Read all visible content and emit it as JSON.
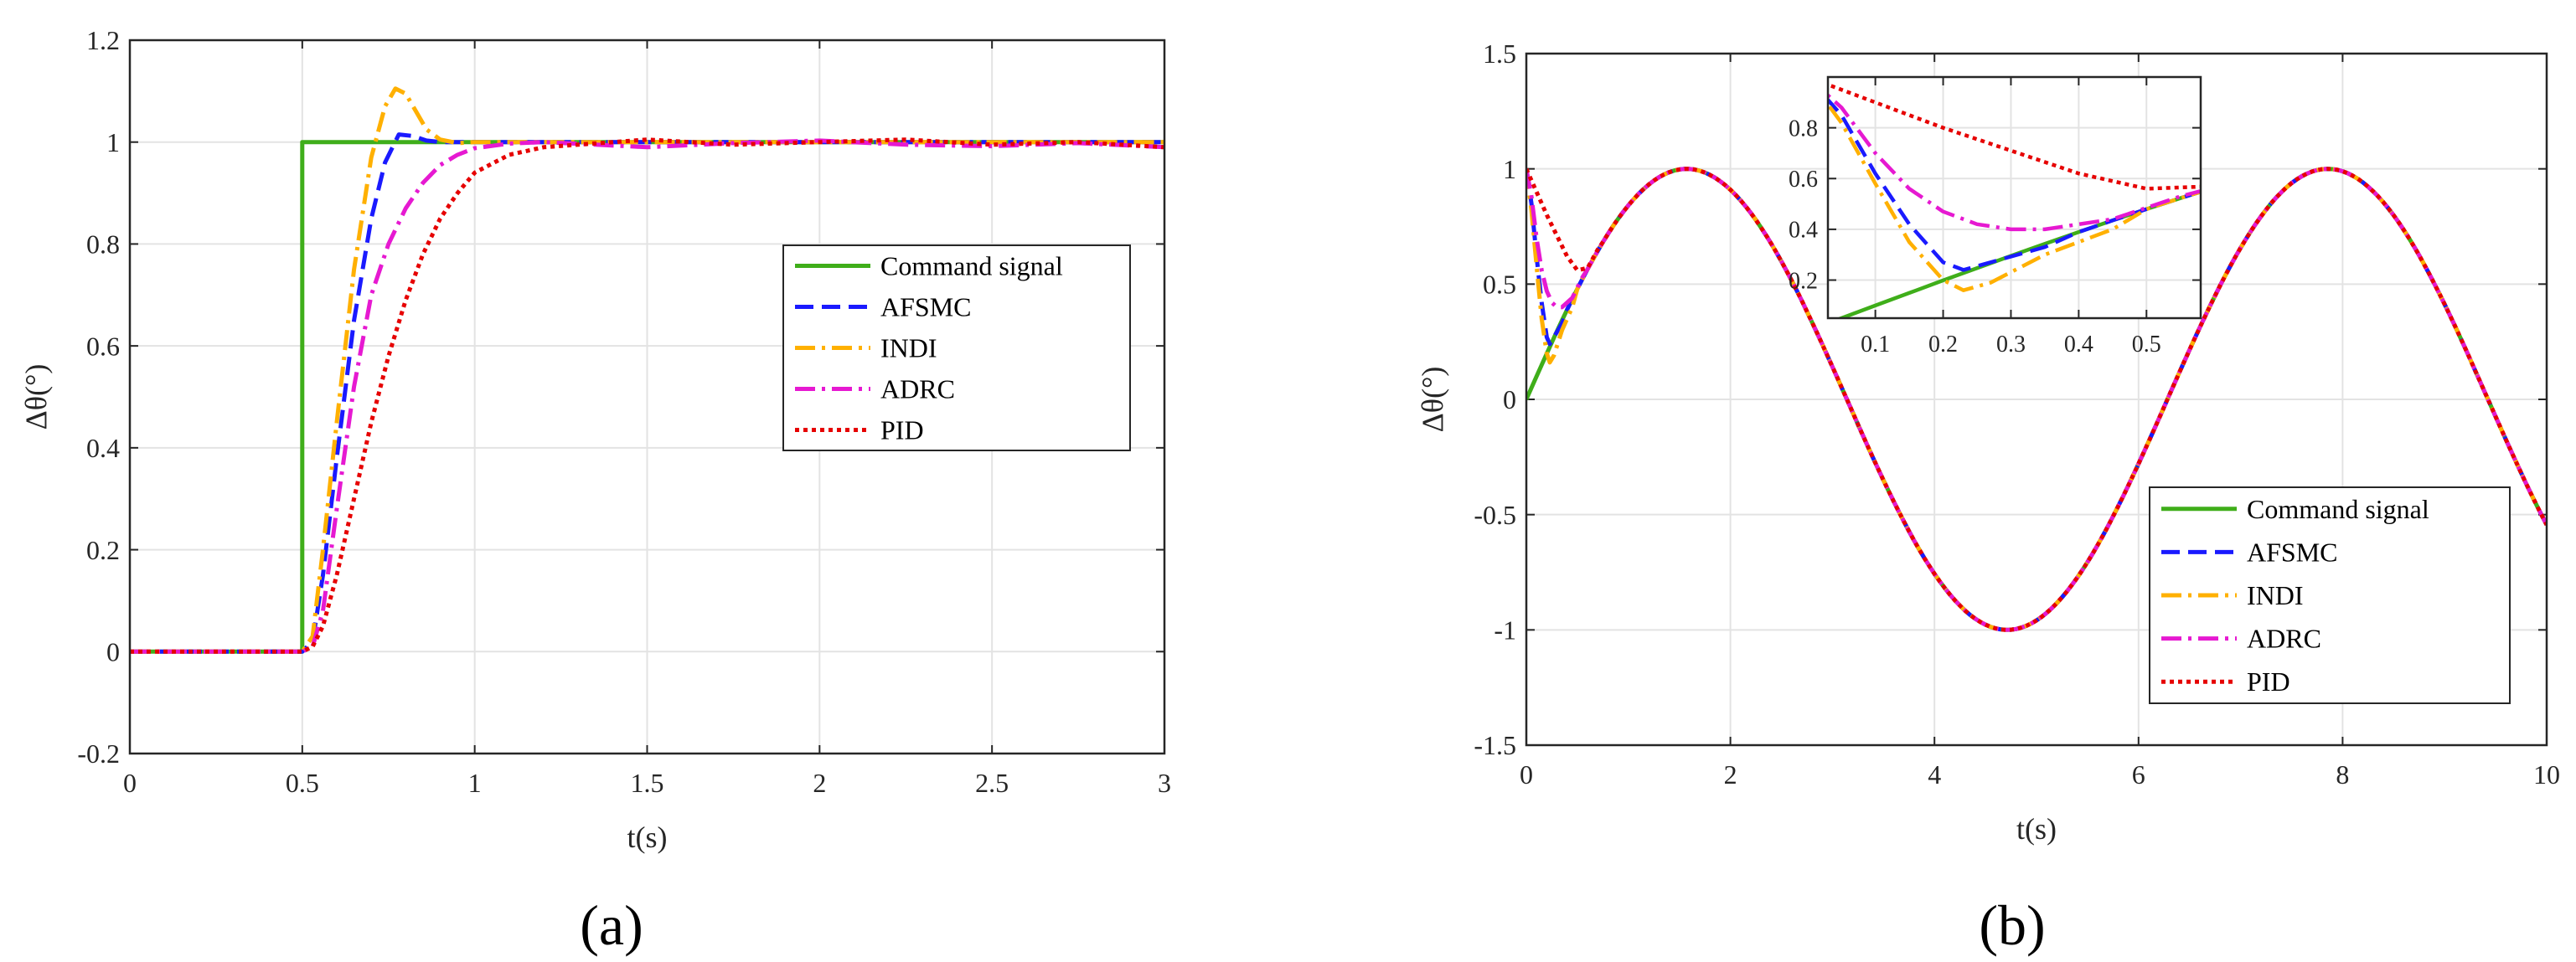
{
  "figure_labels": {
    "a": "(a)",
    "b": "(b)"
  },
  "chart_data": [
    {
      "id": "a",
      "type": "line",
      "title": "",
      "xlabel": "t(s)",
      "ylabel": "Δθ(°)",
      "xlim": [
        0,
        3
      ],
      "ylim": [
        -0.2,
        1.2
      ],
      "xticks": [
        0,
        0.5,
        1,
        1.5,
        2,
        2.5,
        3
      ],
      "xtick_labels": [
        "0",
        "0.5",
        "1",
        "1.5",
        "2",
        "2.5",
        "3"
      ],
      "yticks": [
        -0.2,
        0,
        0.2,
        0.4,
        0.6,
        0.8,
        1,
        1.2
      ],
      "ytick_labels": [
        "-0.2",
        "0",
        "0.2",
        "0.4",
        "0.6",
        "0.8",
        "1",
        "1.2"
      ],
      "grid": true,
      "legend_position": "center-right",
      "series": [
        {
          "name": "Command signal",
          "color": "#3fae1a",
          "style": "solid",
          "x": [
            0,
            0.5,
            0.5,
            3
          ],
          "y": [
            0,
            0,
            1,
            1
          ]
        },
        {
          "name": "AFSMC",
          "color": "#1a1aff",
          "style": "dash",
          "x": [
            0,
            0.5,
            0.53,
            0.56,
            0.6,
            0.65,
            0.7,
            0.74,
            0.78,
            0.82,
            0.86,
            0.9,
            1.0,
            1.5,
            2.0,
            2.5,
            3.0
          ],
          "y": [
            0,
            0,
            0.02,
            0.15,
            0.38,
            0.65,
            0.85,
            0.96,
            1.015,
            1.012,
            1.003,
            1.0,
            1.0,
            1.0,
            1.0,
            1.0,
            1.0
          ]
        },
        {
          "name": "INDI",
          "color": "#ffb000",
          "style": "dashdot",
          "x": [
            0,
            0.5,
            0.53,
            0.56,
            0.6,
            0.65,
            0.7,
            0.74,
            0.77,
            0.8,
            0.83,
            0.86,
            0.9,
            0.95,
            1.0,
            1.5,
            2.0,
            2.5,
            3.0
          ],
          "y": [
            0,
            0,
            0.03,
            0.2,
            0.45,
            0.75,
            0.97,
            1.07,
            1.105,
            1.095,
            1.06,
            1.025,
            1.005,
            0.998,
            1.0,
            1.0,
            1.0,
            1.0,
            1.0
          ]
        },
        {
          "name": "ADRC",
          "color": "#e619d1",
          "style": "dashdot",
          "x": [
            0,
            0.5,
            0.53,
            0.56,
            0.6,
            0.65,
            0.7,
            0.75,
            0.8,
            0.85,
            0.9,
            0.95,
            1.0,
            1.1,
            1.2,
            1.5,
            1.75,
            2.0,
            2.25,
            2.5,
            2.75,
            3.0
          ],
          "y": [
            0,
            0,
            0.01,
            0.08,
            0.28,
            0.52,
            0.7,
            0.8,
            0.87,
            0.92,
            0.955,
            0.975,
            0.988,
            0.997,
            1.0,
            0.99,
            0.998,
            1.003,
            0.995,
            0.992,
            0.998,
            0.99
          ]
        },
        {
          "name": "PID",
          "color": "#e60000",
          "style": "dot",
          "x": [
            0,
            0.5,
            0.53,
            0.56,
            0.6,
            0.65,
            0.7,
            0.75,
            0.8,
            0.85,
            0.9,
            0.95,
            1.0,
            1.1,
            1.2,
            1.3,
            1.5,
            1.75,
            2.0,
            2.25,
            2.5,
            2.75,
            3.0
          ],
          "y": [
            0,
            0,
            0.01,
            0.05,
            0.15,
            0.3,
            0.45,
            0.58,
            0.69,
            0.78,
            0.85,
            0.9,
            0.94,
            0.975,
            0.99,
            0.995,
            1.005,
            0.995,
            1.0,
            1.005,
            0.995,
            1.0,
            0.99
          ]
        }
      ]
    },
    {
      "id": "b",
      "type": "line",
      "title": "",
      "xlabel": "t(s)",
      "ylabel": "Δθ(°)",
      "xlim": [
        0,
        10
      ],
      "ylim": [
        -1.5,
        1.5
      ],
      "xticks": [
        0,
        2,
        4,
        6,
        8,
        10
      ],
      "xtick_labels": [
        "0",
        "2",
        "4",
        "6",
        "8",
        "10"
      ],
      "yticks": [
        -1.5,
        -1,
        -0.5,
        0,
        0.5,
        1,
        1.5
      ],
      "ytick_labels": [
        "-1.5",
        "-1",
        "-0.5",
        "0",
        "0.5",
        "1",
        "1.5"
      ],
      "grid": true,
      "legend_position": "bottom-right",
      "reference": "sin(t)",
      "series": [
        {
          "name": "Command signal",
          "color": "#3fae1a",
          "style": "solid",
          "initial": [
            [
              0,
              0
            ]
          ]
        },
        {
          "name": "AFSMC",
          "color": "#1a1aff",
          "style": "dash",
          "initial": [
            [
              0,
              1.0
            ],
            [
              0.05,
              0.85
            ],
            [
              0.1,
              0.62
            ],
            [
              0.15,
              0.42
            ],
            [
              0.2,
              0.27
            ],
            [
              0.23,
              0.24
            ],
            [
              0.27,
              0.27
            ],
            [
              0.35,
              0.33
            ]
          ]
        },
        {
          "name": "INDI",
          "color": "#ffb000",
          "style": "dashdot",
          "initial": [
            [
              0,
              1.0
            ],
            [
              0.05,
              0.82
            ],
            [
              0.1,
              0.58
            ],
            [
              0.15,
              0.35
            ],
            [
              0.2,
              0.2
            ],
            [
              0.23,
              0.16
            ],
            [
              0.27,
              0.19
            ],
            [
              0.35,
              0.3
            ],
            [
              0.45,
              0.4
            ]
          ]
        },
        {
          "name": "ADRC",
          "color": "#e619d1",
          "style": "dashdot",
          "initial": [
            [
              0,
              1.0
            ],
            [
              0.05,
              0.88
            ],
            [
              0.1,
              0.7
            ],
            [
              0.15,
              0.56
            ],
            [
              0.2,
              0.47
            ],
            [
              0.25,
              0.42
            ],
            [
              0.3,
              0.4
            ],
            [
              0.35,
              0.4
            ],
            [
              0.45,
              0.44
            ],
            [
              0.55,
              0.53
            ]
          ]
        },
        {
          "name": "PID",
          "color": "#e60000",
          "style": "dot",
          "initial": [
            [
              0,
              1.0
            ],
            [
              0.1,
              0.9
            ],
            [
              0.2,
              0.8
            ],
            [
              0.3,
              0.71
            ],
            [
              0.4,
              0.62
            ],
            [
              0.5,
              0.56
            ],
            [
              0.6,
              0.57
            ],
            [
              0.7,
              0.65
            ]
          ]
        }
      ],
      "inset": {
        "xlim": [
          0.03,
          0.58
        ],
        "ylim": [
          0.05,
          1.0
        ],
        "xticks": [
          0.1,
          0.2,
          0.3,
          0.4,
          0.5
        ],
        "xtick_labels": [
          "0.1",
          "0.2",
          "0.3",
          "0.4",
          "0.5"
        ],
        "yticks": [
          0.2,
          0.4,
          0.6,
          0.8
        ],
        "ytick_labels": [
          "0.2",
          "0.4",
          "0.6",
          "0.8"
        ],
        "grid": true
      }
    }
  ]
}
